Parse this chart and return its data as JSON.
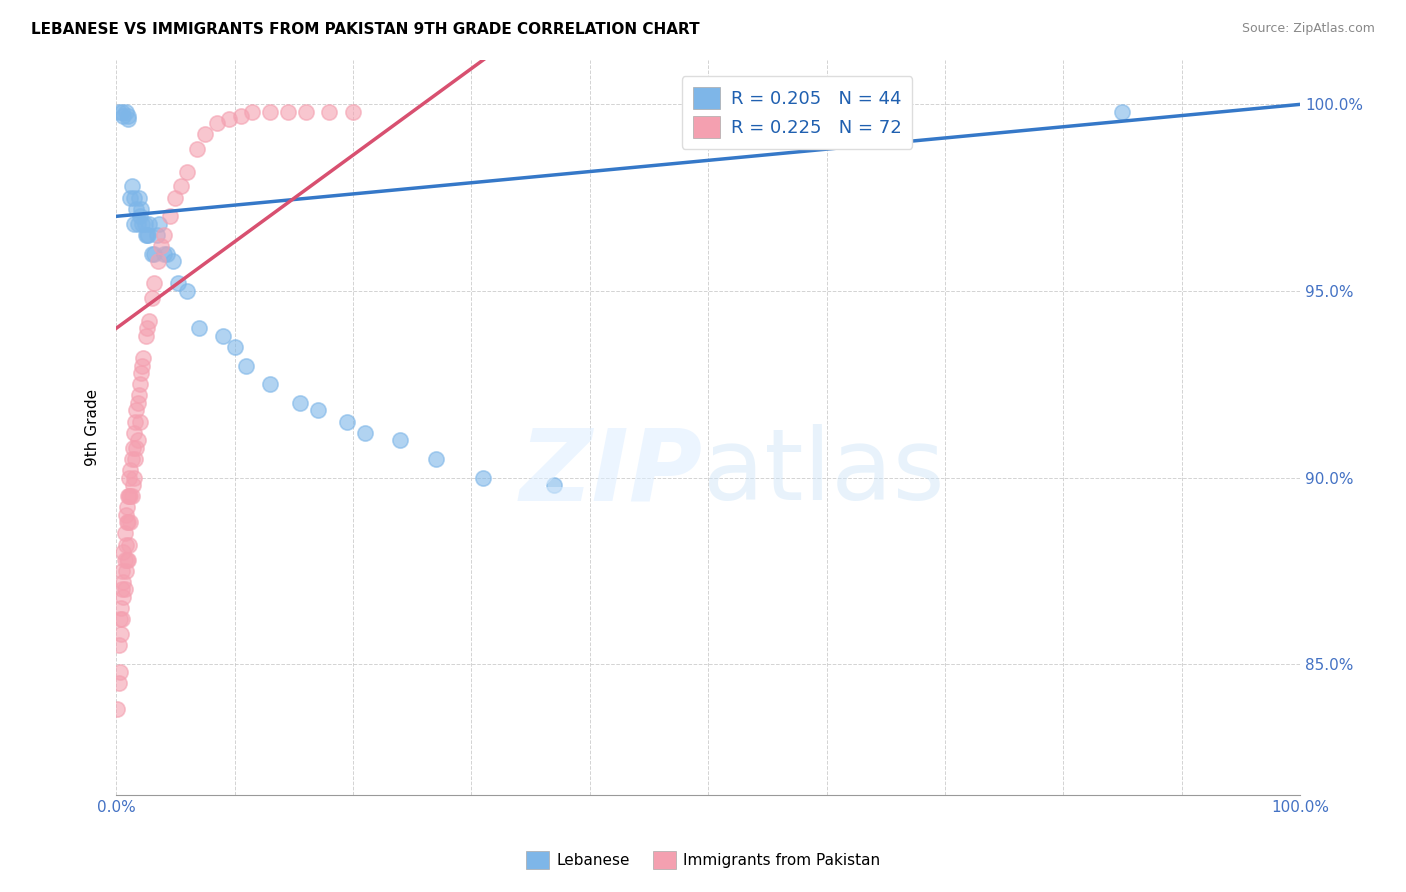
{
  "title": "LEBANESE VS IMMIGRANTS FROM PAKISTAN 9TH GRADE CORRELATION CHART",
  "source": "Source: ZipAtlas.com",
  "ylabel": "9th Grade",
  "xlim": [
    0.0,
    1.0
  ],
  "ylim": [
    0.815,
    1.012
  ],
  "blue_R": 0.205,
  "blue_N": 44,
  "pink_R": 0.225,
  "pink_N": 72,
  "blue_color": "#7EB6E8",
  "pink_color": "#F4A0B0",
  "trend_blue_color": "#3578C8",
  "trend_pink_color": "#D85070",
  "legend_label_blue": "Lebanese",
  "legend_label_pink": "Immigrants from Pakistan",
  "blue_scatter_x": [
    0.002,
    0.005,
    0.006,
    0.008,
    0.01,
    0.01,
    0.012,
    0.013,
    0.015,
    0.015,
    0.017,
    0.018,
    0.019,
    0.02,
    0.021,
    0.022,
    0.024,
    0.025,
    0.026,
    0.027,
    0.028,
    0.03,
    0.032,
    0.034,
    0.036,
    0.04,
    0.043,
    0.048,
    0.052,
    0.06,
    0.07,
    0.09,
    0.1,
    0.11,
    0.13,
    0.155,
    0.17,
    0.195,
    0.21,
    0.24,
    0.27,
    0.31,
    0.37,
    0.85
  ],
  "blue_scatter_y": [
    0.998,
    0.998,
    0.997,
    0.998,
    0.997,
    0.996,
    0.975,
    0.978,
    0.975,
    0.968,
    0.972,
    0.968,
    0.975,
    0.97,
    0.972,
    0.968,
    0.968,
    0.965,
    0.965,
    0.965,
    0.968,
    0.96,
    0.96,
    0.965,
    0.968,
    0.96,
    0.96,
    0.958,
    0.952,
    0.95,
    0.94,
    0.938,
    0.935,
    0.93,
    0.925,
    0.92,
    0.918,
    0.915,
    0.912,
    0.91,
    0.905,
    0.9,
    0.898,
    0.998
  ],
  "pink_scatter_x": [
    0.001,
    0.002,
    0.002,
    0.003,
    0.003,
    0.004,
    0.004,
    0.005,
    0.005,
    0.005,
    0.006,
    0.006,
    0.006,
    0.007,
    0.007,
    0.007,
    0.008,
    0.008,
    0.008,
    0.009,
    0.009,
    0.009,
    0.01,
    0.01,
    0.01,
    0.011,
    0.011,
    0.011,
    0.012,
    0.012,
    0.012,
    0.013,
    0.013,
    0.014,
    0.014,
    0.015,
    0.015,
    0.016,
    0.016,
    0.017,
    0.017,
    0.018,
    0.018,
    0.019,
    0.02,
    0.02,
    0.021,
    0.022,
    0.023,
    0.025,
    0.026,
    0.028,
    0.03,
    0.032,
    0.035,
    0.038,
    0.04,
    0.045,
    0.05,
    0.055,
    0.06,
    0.068,
    0.075,
    0.085,
    0.095,
    0.105,
    0.115,
    0.13,
    0.145,
    0.16,
    0.18,
    0.2
  ],
  "pink_scatter_y": [
    0.838,
    0.845,
    0.855,
    0.848,
    0.862,
    0.865,
    0.858,
    0.87,
    0.862,
    0.875,
    0.872,
    0.88,
    0.868,
    0.878,
    0.885,
    0.87,
    0.882,
    0.89,
    0.875,
    0.888,
    0.892,
    0.878,
    0.895,
    0.888,
    0.878,
    0.895,
    0.882,
    0.9,
    0.895,
    0.902,
    0.888,
    0.905,
    0.895,
    0.908,
    0.898,
    0.912,
    0.9,
    0.915,
    0.905,
    0.918,
    0.908,
    0.92,
    0.91,
    0.922,
    0.925,
    0.915,
    0.928,
    0.93,
    0.932,
    0.938,
    0.94,
    0.942,
    0.948,
    0.952,
    0.958,
    0.962,
    0.965,
    0.97,
    0.975,
    0.978,
    0.982,
    0.988,
    0.992,
    0.995,
    0.996,
    0.997,
    0.998,
    0.998,
    0.998,
    0.998,
    0.998,
    0.998
  ]
}
